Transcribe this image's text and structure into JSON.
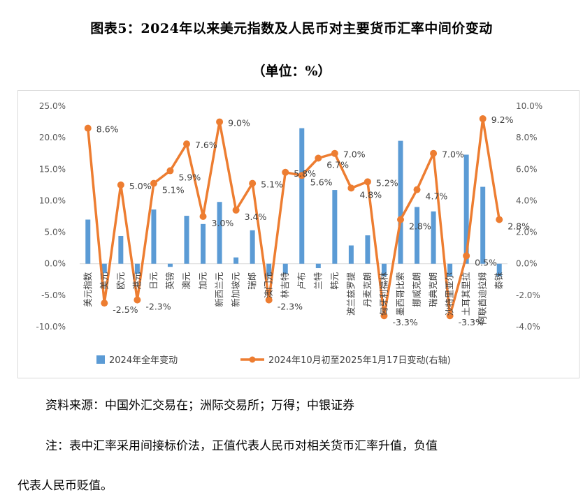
{
  "title": "图表5：2024年以来美元指数及人民币对主要货币汇率中间价变动",
  "subtitle": "（单位：%）",
  "source_text": "资料来源：中国外汇交易在；洲际交易所；万得；中银证券",
  "note_line1": "注：表中汇率采用间接标价法，正值代表人民币对相关货币汇率升值，负值",
  "note_line2": "代表人民币贬值。",
  "chart_data": {
    "type": "bar+line",
    "categories": [
      "美元指数",
      "美元",
      "欧元",
      "港元",
      "日元",
      "英镑",
      "澳元",
      "加元",
      "新西兰元",
      "新加坡元",
      "瑞郎",
      "澳门元",
      "林吉特",
      "卢布",
      "兰特",
      "韩元",
      "波兰兹罗提",
      "丹麦克朗",
      "匈牙利福林",
      "墨西哥比索",
      "挪威克朗",
      "瑞典克朗",
      "沙特里亚尔",
      "土耳其里拉",
      "阿联酋迪拉姆",
      "泰铢"
    ],
    "series": [
      {
        "name": "2024年全年变动",
        "axis": "left",
        "type": "bar",
        "color": "#5b9bd5",
        "values": [
          7.0,
          -1.5,
          4.4,
          -1.6,
          8.6,
          -0.5,
          7.6,
          6.3,
          9.8,
          1.0,
          5.3,
          -2.0,
          -1.6,
          21.5,
          -0.7,
          11.7,
          2.9,
          4.5,
          -2.0,
          19.5,
          9.0,
          8.3,
          -2.0,
          17.3,
          12.2,
          -2.0
        ]
      },
      {
        "name": "2024年10月初至2025年1月17日变动(右轴)",
        "axis": "right",
        "type": "line",
        "color": "#ed7d31",
        "values": [
          8.6,
          -2.5,
          5.0,
          -2.3,
          5.1,
          5.9,
          7.6,
          3.0,
          9.0,
          3.4,
          5.1,
          -2.3,
          5.8,
          5.6,
          6.7,
          7.0,
          4.8,
          5.2,
          -3.3,
          2.8,
          4.7,
          7.0,
          -3.3,
          0.5,
          9.2,
          2.8
        ]
      }
    ],
    "data_labels": [
      "8.6%",
      "-2.5%",
      "5.0%",
      "-2.3%",
      "5.1%",
      "5.9%",
      "7.6%",
      "3.0%",
      "9.0%",
      "3.4%",
      "5.1%",
      "-2.3%",
      "5.8%",
      "5.6%",
      "6.7%",
      "7.0%",
      "4.8%",
      "5.2%",
      "-3.3%",
      "2.8%",
      "4.7%",
      "7.0%",
      "-3.3%",
      "0.5%",
      "9.2%",
      "2.8%"
    ],
    "y_left": {
      "min": -10,
      "max": 25,
      "ticks": [
        "25.0%",
        "20.0%",
        "15.0%",
        "10.0%",
        "5.0%",
        "0.0%",
        "-5.0%",
        "-10.0%"
      ]
    },
    "y_right": {
      "min": -4,
      "max": 10,
      "ticks": [
        "10.0%",
        "8.0%",
        "6.0%",
        "4.0%",
        "2.0%",
        "0.0%",
        "-2.0%",
        "-4.0%"
      ]
    },
    "grid": false,
    "legend_position": "bottom"
  }
}
